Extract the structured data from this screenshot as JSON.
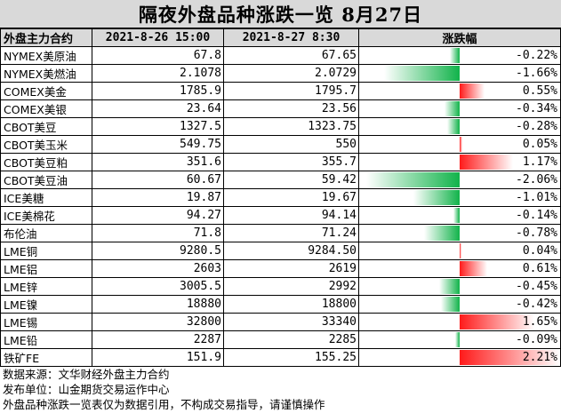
{
  "title": "隔夜外盘品种涨跌一览 8月27日",
  "headers": {
    "name": "外盘主力合约",
    "prev": "2021-8-26 15:00",
    "curr": "2021-8-27 8:30",
    "change": "涨跌幅"
  },
  "colors": {
    "up": "#ff1a1a",
    "down": "#11b34a",
    "header_bg": "#d9d9d9"
  },
  "rows": [
    {
      "name": "NYMEX美原油",
      "prev": "67.8",
      "curr": "67.65",
      "change": "-0.22%",
      "pct": -0.22
    },
    {
      "name": "NYMEX美燃油",
      "prev": "2.1078",
      "curr": "2.0729",
      "change": "-1.66%",
      "pct": -1.66
    },
    {
      "name": "COMEX美金",
      "prev": "1785.9",
      "curr": "1795.7",
      "change": "0.55%",
      "pct": 0.55
    },
    {
      "name": "COMEX美银",
      "prev": "23.64",
      "curr": "23.56",
      "change": "-0.34%",
      "pct": -0.34
    },
    {
      "name": "CBOT美豆",
      "prev": "1327.5",
      "curr": "1323.75",
      "change": "-0.28%",
      "pct": -0.28
    },
    {
      "name": "CBOT美玉米",
      "prev": "549.75",
      "curr": "550",
      "change": "0.05%",
      "pct": 0.05
    },
    {
      "name": "CBOT美豆粕",
      "prev": "351.6",
      "curr": "355.7",
      "change": "1.17%",
      "pct": 1.17
    },
    {
      "name": "CBOT美豆油",
      "prev": "60.67",
      "curr": "59.42",
      "change": "-2.06%",
      "pct": -2.06
    },
    {
      "name": "ICE美糖",
      "prev": "19.87",
      "curr": "19.67",
      "change": "-1.01%",
      "pct": -1.01
    },
    {
      "name": "ICE美棉花",
      "prev": "94.27",
      "curr": "94.14",
      "change": "-0.14%",
      "pct": -0.14
    },
    {
      "name": "布伦油",
      "prev": "71.8",
      "curr": "71.24",
      "change": "-0.78%",
      "pct": -0.78
    },
    {
      "name": "LME铜",
      "prev": "9280.5",
      "curr": "9284.50",
      "change": "0.04%",
      "pct": 0.04
    },
    {
      "name": "LME铝",
      "prev": "2603",
      "curr": "2619",
      "change": "0.61%",
      "pct": 0.61
    },
    {
      "name": "LME锌",
      "prev": "3005.5",
      "curr": "2992",
      "change": "-0.45%",
      "pct": -0.45
    },
    {
      "name": "LME镍",
      "prev": "18880",
      "curr": "18800",
      "change": "-0.42%",
      "pct": -0.42
    },
    {
      "name": "LME锡",
      "prev": "32800",
      "curr": "33340",
      "change": "1.65%",
      "pct": 1.65
    },
    {
      "name": "LME铅",
      "prev": "2287",
      "curr": "2285",
      "change": "-0.09%",
      "pct": -0.09
    },
    {
      "name": "铁矿FE",
      "prev": "151.9",
      "curr": "155.25",
      "change": "2.21%",
      "pct": 2.21
    }
  ],
  "footer": {
    "source": "数据来源：文华财经外盘主力合约",
    "publisher": "发布单位：山金期货交易运作中心",
    "disclaimer": "外盘品种涨跌一览表仅为数据引用，不构成交易指导，请谨慎操作"
  }
}
